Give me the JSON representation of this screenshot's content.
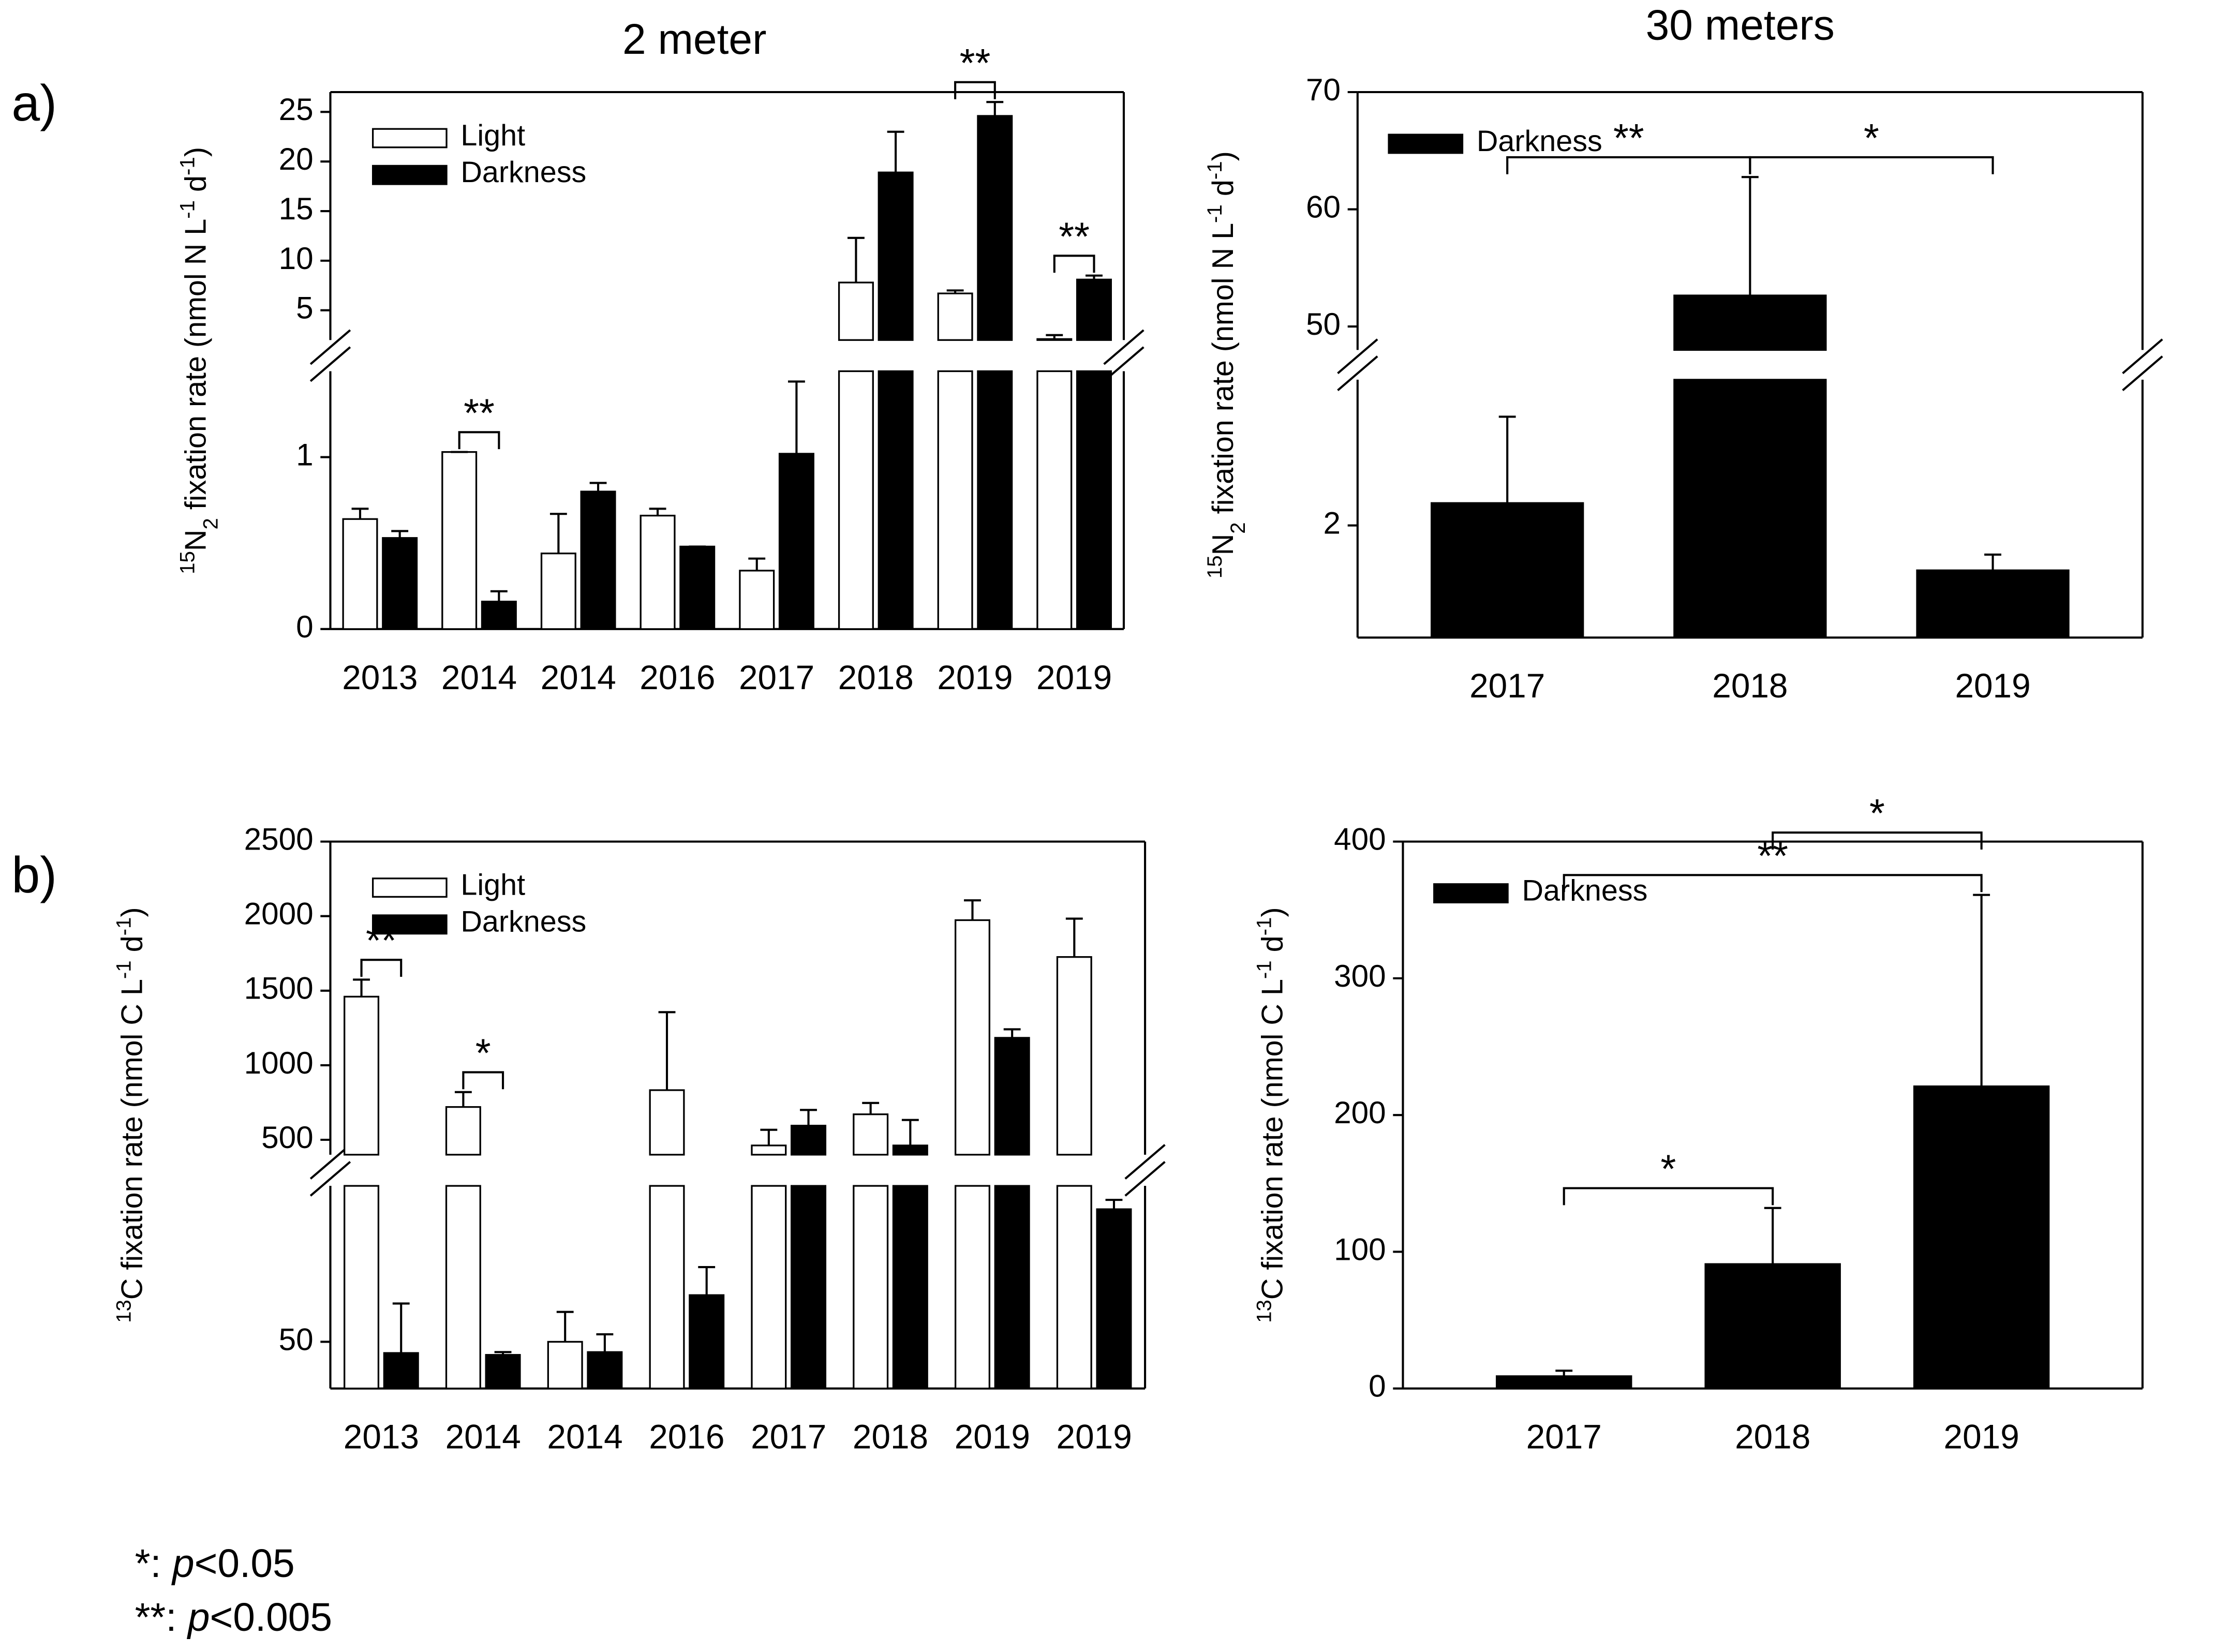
{
  "panel_labels": [
    "a)",
    "b)"
  ],
  "footnotes": [
    [
      {
        "text": "*: ",
        "style": "normal"
      },
      {
        "text": "p",
        "style": "italic"
      },
      {
        "text": "<0.05",
        "style": "normal"
      }
    ],
    [
      {
        "text": "**: ",
        "style": "normal"
      },
      {
        "text": "p",
        "style": "italic"
      },
      {
        "text": "<0.005",
        "style": "normal"
      }
    ]
  ],
  "chart_data": [
    {
      "type": "bar",
      "title": "2 meter",
      "ylabel": [
        {
          "text": "15",
          "style": "sup"
        },
        {
          "text": "N",
          "style": "normal"
        },
        {
          "text": "2",
          "style": "sub"
        },
        {
          "text": " fixation rate (nmol N L",
          "style": "normal"
        },
        {
          "text": "-1",
          "style": "sup"
        },
        {
          "text": " d",
          "style": "normal"
        },
        {
          "text": "-1",
          "style": "sup"
        },
        {
          "text": ")",
          "style": "normal"
        }
      ],
      "categories": [
        "2013",
        "2014",
        "2014",
        "2016",
        "2017",
        "2018",
        "2019",
        "2019"
      ],
      "series": [
        {
          "name": "Light",
          "color": "#ffffff",
          "values": [
            0.64,
            1.03,
            0.44,
            0.66,
            0.34,
            7.8,
            6.7,
            2.1
          ],
          "errors": [
            0.06,
            0,
            0.23,
            0.04,
            0.07,
            4.5,
            0.3,
            0.4
          ]
        },
        {
          "name": "Darkness",
          "color": "#000000",
          "values": [
            0.53,
            0.16,
            0.8,
            0.48,
            1.02,
            18.9,
            24.6,
            8.1
          ],
          "errors": [
            0.04,
            0.06,
            0.05,
            0,
            0.42,
            4.1,
            1.4,
            0.4
          ]
        }
      ],
      "segments": [
        {
          "ylim": [
            0,
            1.5
          ],
          "yticks": [
            0,
            1
          ]
        },
        {
          "ylim": [
            2,
            27
          ],
          "yticks": [
            5,
            10,
            15,
            20,
            25
          ]
        }
      ],
      "legend": "upper left",
      "annotations": [
        {
          "text": "**",
          "from": [
            1,
            0
          ],
          "to": [
            1,
            1
          ]
        },
        {
          "text": "**",
          "from": [
            6,
            0
          ],
          "to": [
            6,
            1
          ]
        },
        {
          "text": "**",
          "from": [
            7,
            0
          ],
          "to": [
            7,
            1
          ]
        }
      ]
    },
    {
      "type": "bar",
      "title": "30 meters",
      "ylabel": [
        {
          "text": "15",
          "style": "sup"
        },
        {
          "text": "N",
          "style": "normal"
        },
        {
          "text": "2",
          "style": "sub"
        },
        {
          "text": " fixation rate (nmol N L",
          "style": "normal"
        },
        {
          "text": "-1",
          "style": "sup"
        },
        {
          "text": " d",
          "style": "normal"
        },
        {
          "text": "-1",
          "style": "sup"
        },
        {
          "text": ")",
          "style": "normal"
        }
      ],
      "categories": [
        "2017",
        "2018",
        "2019"
      ],
      "series": [
        {
          "name": "Darkness",
          "color": "#000000",
          "values": [
            2.2,
            52.65,
            1.6
          ],
          "errors": [
            0.77,
            10.1,
            0.14
          ]
        }
      ],
      "segments": [
        {
          "ylim": [
            1,
            3.3
          ],
          "yticks": [
            2
          ]
        },
        {
          "ylim": [
            48,
            70
          ],
          "yticks": [
            50,
            60,
            70
          ]
        }
      ],
      "legend": "upper left",
      "annotations": [
        {
          "text": "**",
          "from": [
            0,
            0
          ],
          "to": [
            1,
            0
          ]
        },
        {
          "text": "*",
          "from": [
            1,
            0
          ],
          "to": [
            2,
            0
          ]
        }
      ]
    },
    {
      "type": "bar",
      "ylabel": [
        {
          "text": "13",
          "style": "sup"
        },
        {
          "text": "C fixation rate (nmol C L",
          "style": "normal"
        },
        {
          "text": "-1",
          "style": "sup"
        },
        {
          "text": " d",
          "style": "normal"
        },
        {
          "text": "-1",
          "style": "sup"
        },
        {
          "text": ")",
          "style": "normal"
        }
      ],
      "categories": [
        "2013",
        "2014",
        "2014",
        "2016",
        "2017",
        "2018",
        "2019",
        "2019"
      ],
      "series": [
        {
          "name": "Light",
          "color": "#ffffff",
          "values": [
            1460,
            720,
            50,
            833,
            462,
            671,
            1973,
            1726
          ],
          "errors": [
            114,
            100,
            32,
            523,
            105,
            76,
            133,
            257
          ]
        },
        {
          "name": "Darkness",
          "color": "#000000",
          "values": [
            38,
            36,
            39,
            100,
            595,
            462,
            1184,
            192
          ],
          "errors": [
            53,
            3,
            19,
            30,
            105,
            171,
            57,
            10
          ]
        }
      ],
      "segments": [
        {
          "ylim": [
            0,
            217
          ],
          "yticks": [
            50
          ]
        },
        {
          "ylim": [
            400,
            2500
          ],
          "yticks": [
            500,
            1000,
            1500,
            2000,
            2500
          ]
        }
      ],
      "legend": "upper left",
      "annotations": [
        {
          "text": "**",
          "from": [
            0,
            0
          ],
          "to": [
            0,
            1
          ]
        },
        {
          "text": "*",
          "from": [
            1,
            0
          ],
          "to": [
            1,
            1
          ]
        }
      ]
    },
    {
      "type": "bar",
      "ylabel": [
        {
          "text": "13",
          "style": "sup"
        },
        {
          "text": "C fixation rate (nmol C L",
          "style": "normal"
        },
        {
          "text": "-1",
          "style": "sup"
        },
        {
          "text": " d",
          "style": "normal"
        },
        {
          "text": "-1",
          "style": "sup"
        },
        {
          "text": ")",
          "style": "normal"
        }
      ],
      "categories": [
        "2017",
        "2018",
        "2019"
      ],
      "series": [
        {
          "name": "Darkness",
          "color": "#000000",
          "values": [
            9,
            91,
            221
          ],
          "errors": [
            4,
            41,
            140
          ]
        }
      ],
      "segments": [
        {
          "ylim": [
            0,
            400
          ],
          "yticks": [
            0,
            100,
            200,
            300,
            400
          ]
        }
      ],
      "legend": "upper left",
      "annotations": [
        {
          "text": "*",
          "from": [
            0,
            0
          ],
          "to": [
            1,
            0
          ]
        },
        {
          "text": "**",
          "from": [
            0,
            0
          ],
          "to": [
            2,
            0
          ]
        },
        {
          "text": "*",
          "from": [
            1,
            0
          ],
          "to": [
            2,
            0
          ]
        }
      ]
    }
  ]
}
